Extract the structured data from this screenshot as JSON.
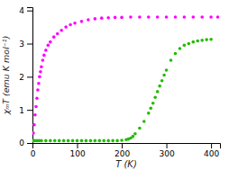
{
  "chart_data": {
    "type": "scatter",
    "xlabel": "T (K)",
    "ylabel": "χₘT (emu K mol⁻¹)",
    "xlim": [
      0,
      420
    ],
    "ylim": [
      0,
      4.1
    ],
    "xticks": [
      0,
      100,
      200,
      300,
      400
    ],
    "yticks": [
      0,
      1,
      2,
      3,
      4
    ],
    "series": [
      {
        "color": "#ff00ff",
        "x": [
          2,
          4,
          6,
          8,
          10,
          12,
          14,
          16,
          18,
          20,
          23,
          26,
          30,
          35,
          40,
          48,
          56,
          65,
          75,
          85,
          95,
          110,
          125,
          140,
          155,
          170,
          185,
          200,
          220,
          240,
          260,
          280,
          300,
          320,
          340,
          360,
          380,
          400,
          415
        ],
        "values": [
          0.3,
          0.55,
          0.85,
          1.1,
          1.35,
          1.6,
          1.8,
          2.0,
          2.15,
          2.3,
          2.5,
          2.65,
          2.8,
          2.95,
          3.05,
          3.2,
          3.3,
          3.4,
          3.5,
          3.57,
          3.62,
          3.67,
          3.72,
          3.75,
          3.77,
          3.78,
          3.79,
          3.79,
          3.8,
          3.8,
          3.8,
          3.8,
          3.8,
          3.8,
          3.8,
          3.8,
          3.8,
          3.8,
          3.8
        ]
      },
      {
        "color": "#22bb00",
        "x": [
          2,
          5,
          10,
          15,
          20,
          30,
          40,
          50,
          60,
          70,
          80,
          90,
          100,
          110,
          120,
          130,
          140,
          150,
          160,
          170,
          180,
          190,
          200,
          210,
          215,
          220,
          225,
          230,
          240,
          250,
          260,
          265,
          270,
          275,
          280,
          285,
          290,
          295,
          300,
          310,
          320,
          330,
          340,
          350,
          360,
          370,
          380,
          390,
          400
        ],
        "values": [
          0.07,
          0.07,
          0.07,
          0.07,
          0.07,
          0.07,
          0.07,
          0.07,
          0.07,
          0.07,
          0.07,
          0.07,
          0.07,
          0.07,
          0.07,
          0.07,
          0.07,
          0.07,
          0.07,
          0.07,
          0.07,
          0.07,
          0.08,
          0.1,
          0.12,
          0.15,
          0.2,
          0.28,
          0.45,
          0.65,
          0.9,
          1.05,
          1.2,
          1.38,
          1.55,
          1.72,
          1.88,
          2.05,
          2.2,
          2.5,
          2.7,
          2.85,
          2.95,
          3.0,
          3.05,
          3.08,
          3.1,
          3.12,
          3.13
        ]
      }
    ]
  }
}
